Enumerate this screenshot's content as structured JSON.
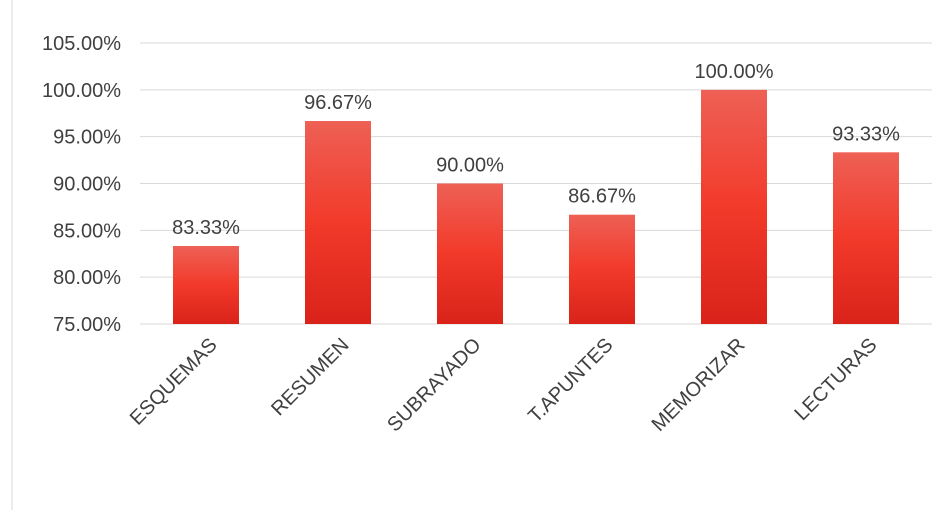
{
  "chart_data": {
    "type": "bar",
    "categories": [
      "ESQUEMAS",
      "RESUMEN",
      "SUBRAYADO",
      "T.APUNTES",
      "MEMORIZAR",
      "LECTURAS"
    ],
    "values": [
      83.33,
      96.67,
      90.0,
      86.67,
      100.0,
      93.33
    ],
    "data_labels": [
      "83.33%",
      "96.67%",
      "90.00%",
      "86.67%",
      "100.00%",
      "93.33%"
    ],
    "yticks": [
      "75.00%",
      "80.00%",
      "85.00%",
      "90.00%",
      "95.00%",
      "100.00%",
      "105.00%"
    ],
    "ylim": [
      75,
      105
    ],
    "ystep": 5,
    "grid": true,
    "legend": "none",
    "title": "",
    "xlabel": "",
    "ylabel": "",
    "colors": {
      "bar_top": "#ee6055",
      "bar_bottom": "#d9231a",
      "bar_mid": "#f23a2a"
    }
  }
}
